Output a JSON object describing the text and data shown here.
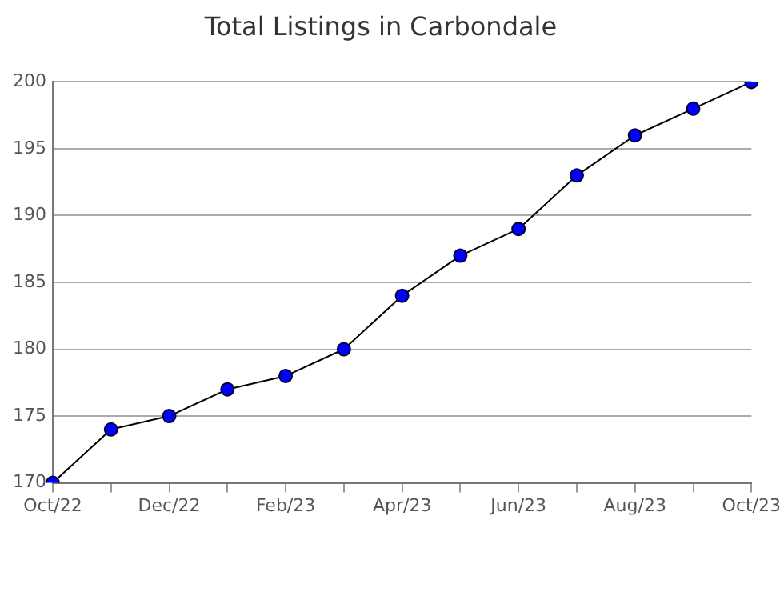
{
  "chart_data": {
    "type": "line",
    "title": "Total Listings in Carbondale",
    "categories": [
      "Oct/22",
      null,
      "Dec/22",
      null,
      "Feb/23",
      null,
      "Apr/23",
      null,
      "Jun/23",
      null,
      "Aug/23",
      null,
      "Oct/23"
    ],
    "series": [
      {
        "color": "#0000ff",
        "values": [
          170,
          174,
          175,
          177,
          178,
          180,
          184,
          187,
          189,
          193,
          196,
          198,
          200
        ]
      }
    ],
    "ylim": [
      170,
      200
    ],
    "yticks": [
      170,
      175,
      180,
      185,
      190,
      195,
      200
    ],
    "grid": "y",
    "legend": false,
    "marker": "circle",
    "line_style": "solid"
  }
}
